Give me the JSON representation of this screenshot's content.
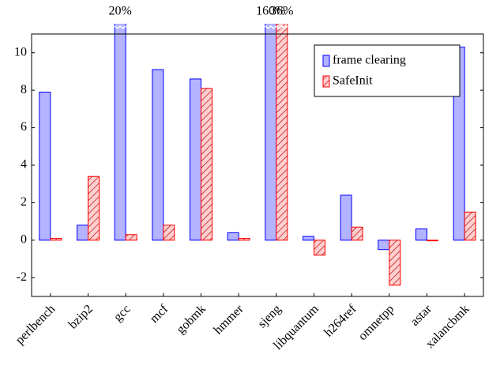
{
  "chart_data": {
    "type": "bar",
    "categories": [
      "perlbench",
      "bzip2",
      "gcc",
      "mcf",
      "gobmk",
      "hmmer",
      "sjeng",
      "libquantum",
      "h264ref",
      "omnetpp",
      "astar",
      "xalancbmk"
    ],
    "series": [
      {
        "name": "frame clearing",
        "color": "#0000ff",
        "fill": "#b3b3ff",
        "values": [
          7.9,
          0.8,
          20,
          9.1,
          8.6,
          0.4,
          160,
          0.2,
          2.4,
          -0.5,
          0.6,
          10.3
        ],
        "value_labels": [
          null,
          null,
          "20%",
          null,
          null,
          null,
          "160%",
          null,
          null,
          null,
          null,
          null
        ]
      },
      {
        "name": "SafeInit",
        "color": "#ff0000",
        "fill": "#ffd0d0",
        "hatch": true,
        "values": [
          0.1,
          3.4,
          0.3,
          0.8,
          8.1,
          0.1,
          36,
          -0.8,
          0.7,
          -2.4,
          0.0,
          1.5
        ],
        "value_labels": [
          null,
          null,
          null,
          null,
          null,
          null,
          "36%",
          null,
          null,
          null,
          null,
          null
        ]
      }
    ],
    "ylim": [
      -3,
      11
    ],
    "yticks": [
      -2,
      0,
      2,
      4,
      6,
      8,
      10
    ],
    "legend": "top-right"
  }
}
